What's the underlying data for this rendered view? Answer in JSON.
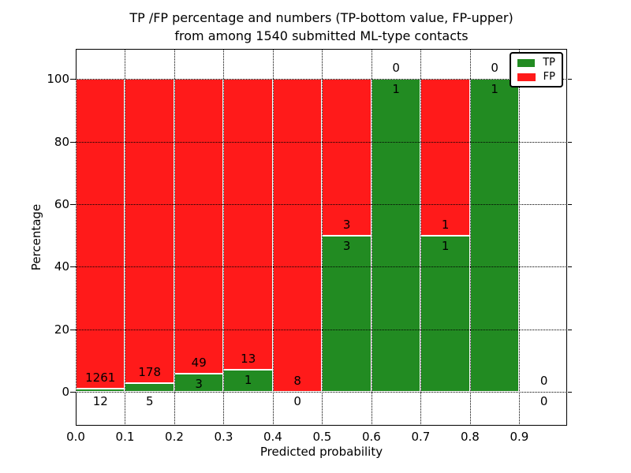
{
  "chart_data": {
    "type": "bar",
    "stacked": true,
    "normalization": "each bin stacked to 100%",
    "title_line1": "TP /FP percentage and numbers (TP-bottom value, FP-upper)",
    "title_line2": "from among 1540 submitted ML-type contacts",
    "total_contacts": 1540,
    "xlabel": "Predicted probability",
    "ylabel": "Percentage",
    "xlim": [
      0.0,
      0.997
    ],
    "ylim": [
      -10.8,
      109.6
    ],
    "xticks": [
      "0.0",
      "0.1",
      "0.2",
      "0.3",
      "0.4",
      "0.5",
      "0.6",
      "0.7",
      "0.8",
      "0.9"
    ],
    "yticks": [
      "0",
      "20",
      "40",
      "60",
      "80",
      "100"
    ],
    "grid": "dotted, both axes, drawn over bars",
    "legend_position": "upper right",
    "series": [
      {
        "name": "TP",
        "color": "#228b22"
      },
      {
        "name": "FP",
        "color": "#ff1a1a"
      }
    ],
    "bins": [
      {
        "x0": 0.0,
        "x1": 0.1,
        "tp": 12,
        "fp": 1261
      },
      {
        "x0": 0.1,
        "x1": 0.2,
        "tp": 5,
        "fp": 178
      },
      {
        "x0": 0.2,
        "x1": 0.3,
        "tp": 3,
        "fp": 49
      },
      {
        "x0": 0.3,
        "x1": 0.4,
        "tp": 1,
        "fp": 13
      },
      {
        "x0": 0.4,
        "x1": 0.5,
        "tp": 0,
        "fp": 8
      },
      {
        "x0": 0.5,
        "x1": 0.6,
        "tp": 3,
        "fp": 3
      },
      {
        "x0": 0.6,
        "x1": 0.7,
        "tp": 1,
        "fp": 0
      },
      {
        "x0": 0.7,
        "x1": 0.8,
        "tp": 1,
        "fp": 1
      },
      {
        "x0": 0.8,
        "x1": 0.9,
        "tp": 1,
        "fp": 0
      },
      {
        "x0": 0.9,
        "x1": 1.0,
        "tp": 0,
        "fp": 0
      }
    ]
  }
}
